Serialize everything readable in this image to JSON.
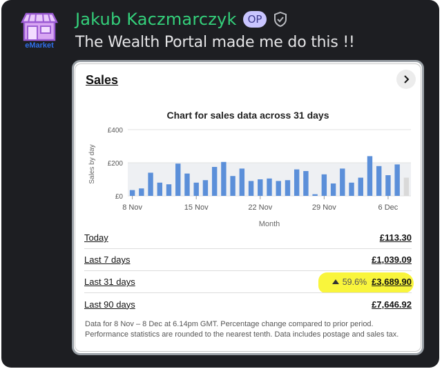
{
  "post": {
    "author_name": "Jakub Kaczmarczyk",
    "op_badge": "OP",
    "message": "The Wealth Portal made me do this !!",
    "avatar_text": "eMarket"
  },
  "card": {
    "title": "Sales",
    "footnote": "Data for 8 Nov – 8 Dec at 6.14pm GMT. Percentage change compared to prior period. Performance statistics are rounded to the nearest tenth. Data includes postage and sales tax.",
    "rows": [
      {
        "label": "Today",
        "value": "£113.30"
      },
      {
        "label": "Last 7 days",
        "value": "£1,039.09"
      },
      {
        "label": "Last 31 days",
        "value": "£3,689.90",
        "change": "59.6%"
      },
      {
        "label": "Last 90 days",
        "value": "£7,646.92"
      }
    ]
  },
  "chart_data": {
    "type": "bar",
    "title": "Chart for sales data across 31 days",
    "xlabel": "Month",
    "ylabel": "Sales by day",
    "ylim": [
      0,
      400
    ],
    "yticks": [
      "£0",
      "£200",
      "£400"
    ],
    "xtick_labels": [
      "8 Nov",
      "15 Nov",
      "22 Nov",
      "29 Nov",
      "6 Dec"
    ],
    "xtick_index": [
      0,
      7,
      14,
      21,
      28
    ],
    "values": [
      35,
      45,
      140,
      80,
      70,
      195,
      135,
      80,
      95,
      175,
      205,
      120,
      165,
      90,
      100,
      105,
      90,
      95,
      160,
      150,
      10,
      130,
      75,
      165,
      80,
      110,
      240,
      180,
      125,
      190,
      110
    ],
    "colors": {
      "bar": "#5b8fd9",
      "last_bar": "#d9d9d9",
      "band": "#eef0f3"
    }
  }
}
